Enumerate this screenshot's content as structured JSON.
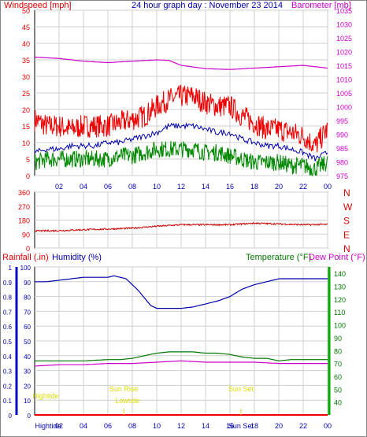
{
  "header": {
    "left_title": "Windspeed [mph]",
    "center_title": "24 hour graph day : November 23 2014",
    "right_title": "Barometer [mb]"
  },
  "colors": {
    "gust": "#ee0000",
    "avg_wind": "#0000aa",
    "low_wind": "#008800",
    "barometer": "#cc00cc",
    "direction": "#cc0000",
    "humidity": "#0000aa",
    "temperature": "#007700",
    "dew_point": "#cc00cc",
    "rainfall": "#ee0000",
    "tide": "#dddd00",
    "grid": "#cfcfcf",
    "left_axis": "#dd0000",
    "right_axis": "#cc00cc",
    "humidity_axis": "#0000aa",
    "temp_axis": "#007700"
  },
  "time_axis": {
    "ticks": [
      "02",
      "04",
      "06",
      "08",
      "10",
      "12",
      "14",
      "16",
      "18",
      "20",
      "22",
      "00"
    ]
  },
  "chart_data": [
    {
      "type": "line",
      "title": "24 hour graph day : November 23 2014",
      "x_unit": "hour",
      "xlim": [
        0,
        24
      ],
      "left_axis": {
        "label": "Windspeed [mph]",
        "range": [
          0,
          50
        ],
        "ticks": [
          "0",
          "5",
          "10",
          "15",
          "20",
          "25",
          "30",
          "35",
          "40",
          "45",
          "50"
        ]
      },
      "right_axis": {
        "label": "Barometer [mb]",
        "range": [
          975,
          1035
        ],
        "ticks": [
          "975",
          "980",
          "985",
          "990",
          "995",
          "1000",
          "1005",
          "1010",
          "1015",
          "1020",
          "1025",
          "1030",
          "1035"
        ]
      },
      "grid": true,
      "series": [
        {
          "name": "Windspeed gust",
          "axis": "left",
          "x": [
            0,
            1,
            2,
            3,
            4,
            5,
            6,
            7,
            8,
            9,
            10,
            11,
            12,
            13,
            14,
            15,
            16,
            17,
            18,
            19,
            20,
            21,
            22,
            23,
            24
          ],
          "y": [
            17,
            15,
            15,
            14,
            15,
            15,
            15,
            16,
            17,
            18,
            21,
            23,
            24,
            24,
            22,
            21,
            21,
            18,
            16,
            14,
            14,
            13,
            12,
            9,
            14
          ]
        },
        {
          "name": "Windspeed average",
          "axis": "left",
          "x": [
            0,
            1,
            2,
            3,
            4,
            5,
            6,
            7,
            8,
            9,
            10,
            11,
            12,
            13,
            14,
            15,
            16,
            17,
            18,
            19,
            20,
            21,
            22,
            23,
            24
          ],
          "y": [
            7,
            8,
            8,
            9,
            9,
            9,
            10,
            10,
            11,
            12,
            13,
            15,
            15,
            15,
            14,
            13,
            13,
            11,
            10,
            9,
            9,
            8,
            7,
            5,
            7
          ]
        },
        {
          "name": "Windspeed low",
          "axis": "left",
          "x": [
            0,
            1,
            2,
            3,
            4,
            5,
            6,
            7,
            8,
            9,
            10,
            11,
            12,
            13,
            14,
            15,
            16,
            17,
            18,
            19,
            20,
            21,
            22,
            23,
            24
          ],
          "y": [
            4,
            5,
            5,
            5,
            5,
            5,
            5,
            6,
            6,
            7,
            8,
            8,
            8,
            8,
            7,
            7,
            6,
            5,
            4,
            4,
            4,
            3,
            3,
            2,
            4
          ]
        },
        {
          "name": "Barometer",
          "axis": "right",
          "x": [
            0,
            2,
            4,
            6,
            8,
            10,
            11,
            12,
            14,
            16,
            18,
            20,
            22,
            24
          ],
          "y": [
            1018,
            1017.5,
            1016.5,
            1016,
            1016.5,
            1017,
            1016.8,
            1015,
            1013.8,
            1013.5,
            1014,
            1014.5,
            1015,
            1014
          ]
        }
      ]
    },
    {
      "type": "line",
      "title": "",
      "x_unit": "hour",
      "xlim": [
        0,
        24
      ],
      "y_axis": {
        "range": [
          0,
          360
        ],
        "ticks": [
          "0",
          "90",
          "180",
          "270",
          "360"
        ]
      },
      "compass_labels": [
        "N",
        "W",
        "S",
        "E",
        "N"
      ],
      "grid": true,
      "series": [
        {
          "name": "Wind direction",
          "x": [
            0,
            2,
            4,
            6,
            8,
            10,
            12,
            14,
            16,
            18,
            20,
            22,
            24
          ],
          "y": [
            110,
            112,
            118,
            122,
            128,
            140,
            150,
            150,
            150,
            160,
            155,
            150,
            152
          ]
        }
      ]
    },
    {
      "type": "line",
      "title": "",
      "x_unit": "hour",
      "xlim": [
        0,
        24
      ],
      "left_axis": {
        "label": "Rainfall (.in)",
        "range": [
          0,
          1
        ],
        "ticks": [
          "0",
          "0.1",
          "0.2",
          "0.3",
          "0.4",
          "0.5",
          "0.6",
          "0.7",
          "0.8",
          "0.9",
          "1"
        ]
      },
      "humidity_axis": {
        "label": "Humidity (%)",
        "range": [
          0,
          100
        ],
        "ticks": [
          "0",
          "10",
          "20",
          "30",
          "40",
          "50",
          "60",
          "70",
          "80",
          "90",
          "100"
        ]
      },
      "right_axis": {
        "label": "Temperature (°F)",
        "range": [
          30,
          145
        ],
        "ticks": [
          "40",
          "50",
          "60",
          "70",
          "80",
          "90",
          "100",
          "110",
          "120",
          "130",
          "140"
        ]
      },
      "dew_point_label": "Dew Point (°F)",
      "grid": true,
      "series": [
        {
          "name": "Humidity",
          "axis": "humidity",
          "x": [
            0,
            1,
            2,
            3,
            4,
            5,
            6,
            6.5,
            7,
            7.5,
            8,
            8.5,
            9,
            9.5,
            10,
            11,
            12,
            13,
            14,
            15,
            16,
            17,
            18,
            19,
            20,
            21,
            22,
            23,
            24
          ],
          "y": [
            90,
            90,
            91,
            92,
            93,
            93,
            93,
            94,
            93,
            92,
            88,
            84,
            79,
            74,
            72,
            72,
            72,
            73,
            75,
            77,
            80,
            85,
            88,
            90,
            92,
            92,
            92,
            92,
            92
          ]
        },
        {
          "name": "Temperature",
          "axis": "right",
          "x": [
            0,
            2,
            4,
            6,
            7,
            8,
            9,
            10,
            11,
            12,
            13,
            14,
            15,
            16,
            17,
            18,
            19,
            20,
            21,
            22,
            23,
            24
          ],
          "y": [
            72,
            72,
            72,
            73,
            73,
            74,
            76,
            78,
            79,
            79,
            79,
            78,
            78,
            77,
            75,
            74,
            74,
            72,
            73,
            73,
            73,
            73
          ]
        },
        {
          "name": "Dew Point",
          "axis": "right",
          "x": [
            0,
            2,
            4,
            6,
            8,
            10,
            12,
            14,
            16,
            18,
            20,
            22,
            24
          ],
          "y": [
            68,
            69,
            69,
            70,
            70,
            71,
            72,
            71,
            71,
            71,
            70,
            70,
            70
          ]
        },
        {
          "name": "Rainfall",
          "axis": "left",
          "x": [
            0,
            24
          ],
          "y": [
            0,
            0
          ]
        }
      ],
      "annotations": [
        {
          "text": "Hightide",
          "x": 0.9
        },
        {
          "text": "Sun Rise",
          "x": 7.3
        },
        {
          "text": "Lowtide",
          "x": 7.6
        },
        {
          "text": "Sun Set",
          "x": 16.9
        }
      ],
      "bottom_labels": [
        {
          "text": "Hightide",
          "x": 1.1
        },
        {
          "text": "Sun Set",
          "x": 16.9
        }
      ]
    }
  ]
}
